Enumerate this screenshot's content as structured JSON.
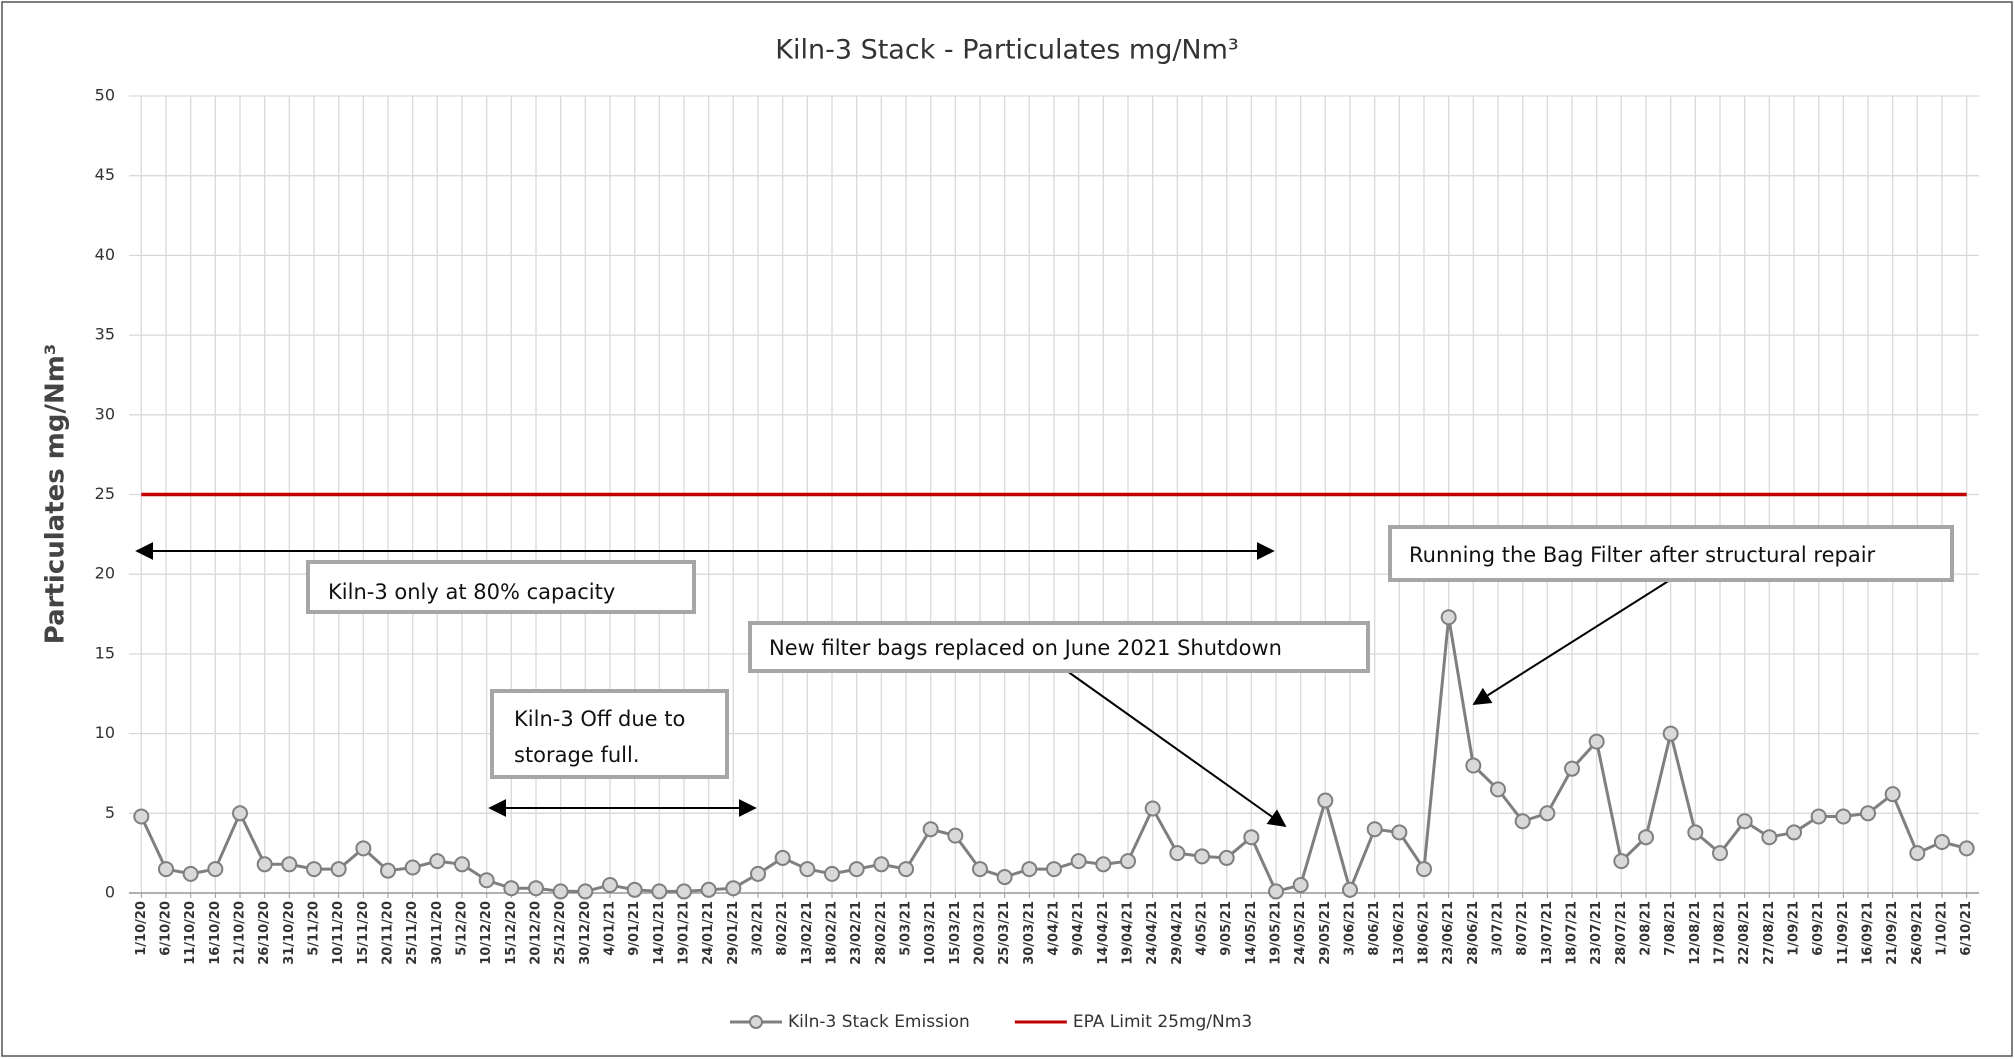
{
  "chart_data": {
    "type": "line",
    "title": "Kiln-3 Stack - Particulates mg/Nm³",
    "y_label": "Particulates mg/Nm³",
    "categories": [
      "1/10/20",
      "6/10/20",
      "11/10/20",
      "16/10/20",
      "21/10/20",
      "26/10/20",
      "31/10/20",
      "5/11/20",
      "10/11/20",
      "15/11/20",
      "20/11/20",
      "25/11/20",
      "30/11/20",
      "5/12/20",
      "10/12/20",
      "15/12/20",
      "20/12/20",
      "25/12/20",
      "30/12/20",
      "4/01/21",
      "9/01/21",
      "14/01/21",
      "19/01/21",
      "24/01/21",
      "29/01/21",
      "3/02/21",
      "8/02/21",
      "13/02/21",
      "18/02/21",
      "23/02/21",
      "28/02/21",
      "5/03/21",
      "10/03/21",
      "15/03/21",
      "20/03/21",
      "25/03/21",
      "30/03/21",
      "4/04/21",
      "9/04/21",
      "14/04/21",
      "19/04/21",
      "24/04/21",
      "29/04/21",
      "4/05/21",
      "9/05/21",
      "14/05/21",
      "19/05/21",
      "24/05/21",
      "29/05/21",
      "3/06/21",
      "8/06/21",
      "13/06/21",
      "18/06/21",
      "23/06/21",
      "28/06/21",
      "3/07/21",
      "8/07/21",
      "13/07/21",
      "18/07/21",
      "23/07/21",
      "28/07/21",
      "2/08/21",
      "7/08/21",
      "12/08/21",
      "17/08/21",
      "22/08/21",
      "27/08/21",
      "1/09/21",
      "6/09/21",
      "11/09/21",
      "16/09/21",
      "21/09/21",
      "26/09/21",
      "1/10/21",
      "6/10/21"
    ],
    "series": [
      {
        "name": "Kiln-3 Stack Emission",
        "color": "#7f7f7f",
        "marker": true,
        "values": [
          4.8,
          1.5,
          1.2,
          1.5,
          5.0,
          1.8,
          1.8,
          1.5,
          1.5,
          2.8,
          1.4,
          1.6,
          2.0,
          1.8,
          0.8,
          0.3,
          0.3,
          0.1,
          0.1,
          0.5,
          0.2,
          0.1,
          0.1,
          0.2,
          0.3,
          1.2,
          2.2,
          1.5,
          1.2,
          1.5,
          1.8,
          1.5,
          4.0,
          3.6,
          1.5,
          1.0,
          1.5,
          1.5,
          2.0,
          1.8,
          2.0,
          5.3,
          2.5,
          2.3,
          2.2,
          3.5,
          0.1,
          0.5,
          5.8,
          0.2,
          4.0,
          3.8,
          1.5,
          17.3,
          8.0,
          6.5,
          4.5,
          5.0,
          7.8,
          9.5,
          2.0,
          3.5,
          10.0,
          3.8,
          2.5,
          4.5,
          3.5,
          3.8,
          4.8,
          4.8,
          5.0,
          6.2,
          2.5,
          3.2,
          2.8
        ]
      },
      {
        "name": "EPA Limit 25mg/Nm3",
        "color": "#c00000",
        "marker": false,
        "values": [
          25,
          25,
          25,
          25,
          25,
          25,
          25,
          25,
          25,
          25,
          25,
          25,
          25,
          25,
          25,
          25,
          25,
          25,
          25,
          25,
          25,
          25,
          25,
          25,
          25,
          25,
          25,
          25,
          25,
          25,
          25,
          25,
          25,
          25,
          25,
          25,
          25,
          25,
          25,
          25,
          25,
          25,
          25,
          25,
          25,
          25,
          25,
          25,
          25,
          25,
          25,
          25,
          25,
          25,
          25,
          25,
          25,
          25,
          25,
          25,
          25,
          25,
          25,
          25,
          25,
          25,
          25,
          25,
          25,
          25,
          25,
          25,
          25,
          25,
          25
        ]
      }
    ],
    "ylim": [
      0,
      50
    ],
    "yticks": [
      0,
      5,
      10,
      15,
      20,
      25,
      30,
      35,
      40,
      45,
      50
    ],
    "grid": true,
    "legend": "bottom",
    "annotations": [
      {
        "text": [
          "Kiln-3 only at 80% capacity"
        ]
      },
      {
        "text": [
          "Kiln-3 Off due to",
          "storage full."
        ]
      },
      {
        "text": [
          "New filter bags replaced on June 2021 Shutdown"
        ]
      },
      {
        "text": [
          "Running the Bag Filter after structural repair"
        ]
      }
    ]
  }
}
